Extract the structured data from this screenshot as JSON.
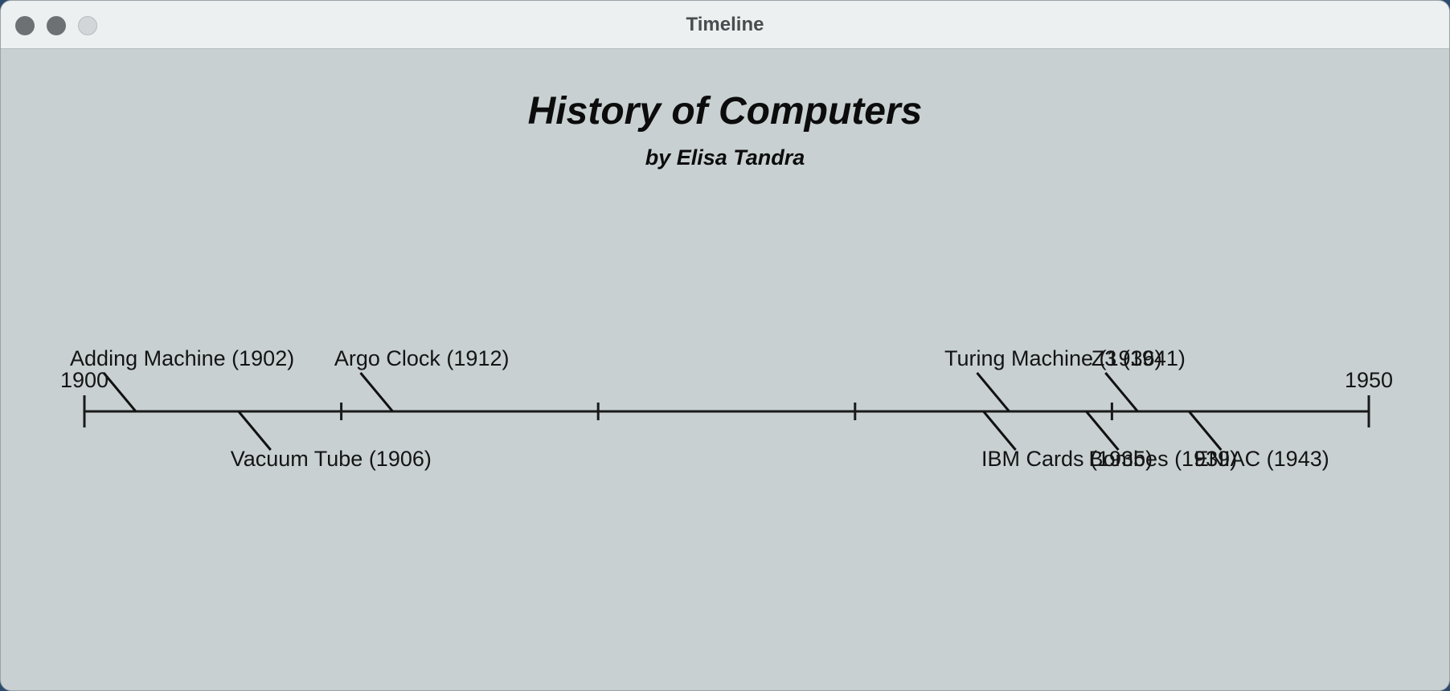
{
  "window": {
    "title": "Timeline"
  },
  "header": {
    "title": "History of Computers",
    "subtitle": "by Elisa Tandra"
  },
  "timeline": {
    "start_label": "1900",
    "end_label": "1950",
    "start_year": 1900,
    "end_year": 1950,
    "tick_years": [
      1910,
      1920,
      1930,
      1940
    ],
    "events": [
      {
        "label": "Adding Machine (1902)",
        "year": 1902,
        "side": "above"
      },
      {
        "label": "Vacuum Tube (1906)",
        "year": 1906,
        "side": "below"
      },
      {
        "label": "Argo Clock (1912)",
        "year": 1912,
        "side": "above"
      },
      {
        "label": "IBM Cards (1935)",
        "year": 1935,
        "side": "below"
      },
      {
        "label": "Turing Machine (1936)",
        "year": 1936,
        "side": "above"
      },
      {
        "label": "Bombes (1939)",
        "year": 1939,
        "side": "below"
      },
      {
        "label": "Z3 (1941)",
        "year": 1941,
        "side": "above"
      },
      {
        "label": "ENIAC (1943)",
        "year": 1943,
        "side": "below"
      }
    ]
  }
}
